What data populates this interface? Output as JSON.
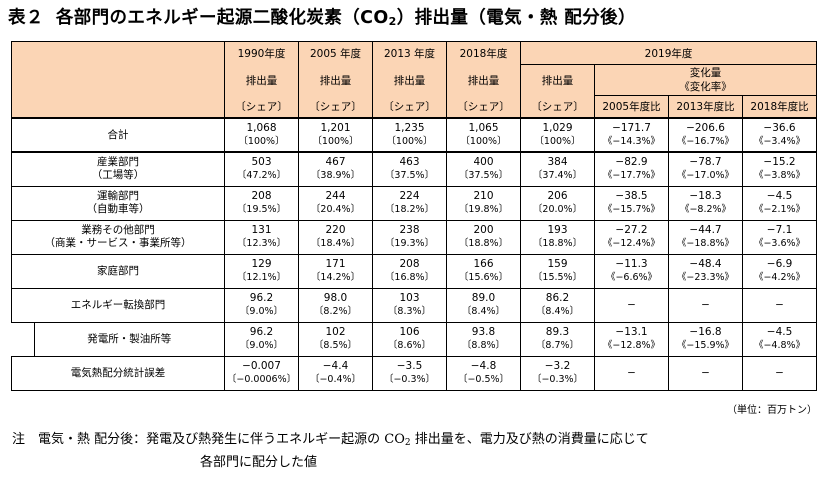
{
  "title": {
    "label": "表２",
    "pre": "各部門のエネルギー起源二酸化炭素（CO",
    "sub": "2",
    "post": "）排出量（電気・熱 配分後）"
  },
  "header": {
    "years": [
      "1990年度",
      "2005 年度",
      "2013 年度",
      "2018年度"
    ],
    "year2019": "2019年度",
    "emission": "排出量",
    "share": "〔シェア〕",
    "change_l1": "変化量",
    "change_l2": "《変化率》",
    "cmp": [
      "2005年度比",
      "2013年度比",
      "2018年度比"
    ]
  },
  "rows": [
    {
      "name1": "合計",
      "name2": "",
      "indent": false,
      "thick": true,
      "v": [
        [
          "1,068",
          "〔100%〕"
        ],
        [
          "1,201",
          "〔100%〕"
        ],
        [
          "1,235",
          "〔100%〕"
        ],
        [
          "1,065",
          "〔100%〕"
        ],
        [
          "1,029",
          "〔100%〕"
        ]
      ],
      "c": [
        [
          "−171.7",
          "《−14.3%》"
        ],
        [
          "−206.6",
          "《−16.7%》"
        ],
        [
          "−36.6",
          "《−3.4%》"
        ]
      ]
    },
    {
      "name1": "産業部門",
      "name2": "（工場等）",
      "indent": false,
      "thick": true,
      "v": [
        [
          "503",
          "〔47.2%〕"
        ],
        [
          "467",
          "〔38.9%〕"
        ],
        [
          "463",
          "〔37.5%〕"
        ],
        [
          "400",
          "〔37.5%〕"
        ],
        [
          "384",
          "〔37.4%〕"
        ]
      ],
      "c": [
        [
          "−82.9",
          "《−17.7%》"
        ],
        [
          "−78.7",
          "《−17.0%》"
        ],
        [
          "−15.2",
          "《−3.8%》"
        ]
      ]
    },
    {
      "name1": "運輸部門",
      "name2": "（自動車等）",
      "indent": false,
      "thick": false,
      "v": [
        [
          "208",
          "〔19.5%〕"
        ],
        [
          "244",
          "〔20.4%〕"
        ],
        [
          "224",
          "〔18.2%〕"
        ],
        [
          "210",
          "〔19.8%〕"
        ],
        [
          "206",
          "〔20.0%〕"
        ]
      ],
      "c": [
        [
          "−38.5",
          "《−15.7%》"
        ],
        [
          "−18.3",
          "《−8.2%》"
        ],
        [
          "−4.5",
          "《−2.1%》"
        ]
      ]
    },
    {
      "name1": "業務その他部門",
      "name2": "（商業・サービス・事業所等）",
      "indent": false,
      "thick": false,
      "v": [
        [
          "131",
          "〔12.3%〕"
        ],
        [
          "220",
          "〔18.4%〕"
        ],
        [
          "238",
          "〔19.3%〕"
        ],
        [
          "200",
          "〔18.8%〕"
        ],
        [
          "193",
          "〔18.8%〕"
        ]
      ],
      "c": [
        [
          "−27.2",
          "《−12.4%》"
        ],
        [
          "−44.7",
          "《−18.8%》"
        ],
        [
          "−7.1",
          "《−3.6%》"
        ]
      ]
    },
    {
      "name1": "家庭部門",
      "name2": "",
      "indent": false,
      "thick": false,
      "v": [
        [
          "129",
          "〔12.1%〕"
        ],
        [
          "171",
          "〔14.2%〕"
        ],
        [
          "208",
          "〔16.8%〕"
        ],
        [
          "166",
          "〔15.6%〕"
        ],
        [
          "159",
          "〔15.5%〕"
        ]
      ],
      "c": [
        [
          "−11.3",
          "《−6.6%》"
        ],
        [
          "−48.4",
          "《−23.3%》"
        ],
        [
          "−6.9",
          "《−4.2%》"
        ]
      ]
    },
    {
      "name1": "エネルギー転換部門",
      "name2": "",
      "indent": false,
      "thick": false,
      "v": [
        [
          "96.2",
          "〔9.0%〕"
        ],
        [
          "98.0",
          "〔8.2%〕"
        ],
        [
          "103",
          "〔8.3%〕"
        ],
        [
          "89.0",
          "〔8.4%〕"
        ],
        [
          "86.2",
          "〔8.4%〕"
        ]
      ],
      "c": [
        [
          "−",
          ""
        ],
        [
          "−",
          ""
        ],
        [
          "−",
          ""
        ]
      ]
    },
    {
      "name1": "発電所・製油所等",
      "name2": "",
      "indent": true,
      "thick": false,
      "v": [
        [
          "96.2",
          "〔9.0%〕"
        ],
        [
          "102",
          "〔8.5%〕"
        ],
        [
          "106",
          "〔8.6%〕"
        ],
        [
          "93.8",
          "〔8.8%〕"
        ],
        [
          "89.3",
          "〔8.7%〕"
        ]
      ],
      "c": [
        [
          "−13.1",
          "《−12.8%》"
        ],
        [
          "−16.8",
          "《−15.9%》"
        ],
        [
          "−4.5",
          "《−4.8%》"
        ]
      ]
    },
    {
      "name1": "電気熱配分統計誤差",
      "name2": "",
      "indent": false,
      "thick": false,
      "v": [
        [
          "−0.007",
          "〔−0.0006%〕"
        ],
        [
          "−4.4",
          "〔−0.4%〕"
        ],
        [
          "−3.5",
          "〔−0.3%〕"
        ],
        [
          "−4.8",
          "〔−0.5%〕"
        ],
        [
          "−3.2",
          "〔−0.3%〕"
        ]
      ],
      "c": [
        [
          "−",
          ""
        ],
        [
          "−",
          ""
        ],
        [
          "−",
          ""
        ]
      ]
    }
  ],
  "unit": "（単位：百万トン）",
  "note": {
    "line1_pre": "注　電気・熱 配分後：発電及び熱発生に伴うエネルギー起源の CO",
    "line1_sub": "2",
    "line1_post": " 排出量を、電力及び熱の消費量に応じて",
    "line2": "各部門に配分した値"
  }
}
